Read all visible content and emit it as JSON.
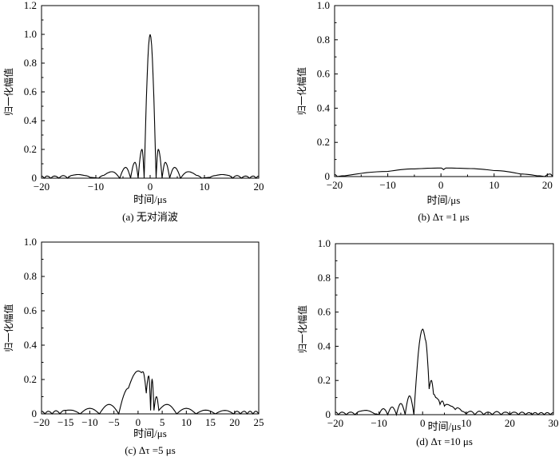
{
  "chart_data": [
    {
      "type": "line",
      "caption": "(a) 无对消波",
      "xlabel": "时间/μs",
      "ylabel": "归一化幅值",
      "xlim": [
        -20,
        20
      ],
      "ylim": [
        0,
        1.2
      ],
      "xticks": [
        -20,
        -10,
        0,
        10,
        20
      ],
      "xtick_labels": [
        "−20",
        "−10",
        "0",
        "10",
        "20"
      ],
      "yticks": [
        0,
        0.2,
        0.4,
        0.6,
        0.8,
        1.0,
        1.2
      ],
      "ytick_labels": [
        "0",
        "0.2",
        "0.4",
        "0.6",
        "0.8",
        "1.0",
        "1.2"
      ],
      "grid": false,
      "points": [
        [
          -20,
          0.015
        ],
        [
          -19.5,
          0
        ],
        [
          -19,
          0.015
        ],
        [
          -18.3,
          0
        ],
        [
          -17.6,
          0.015
        ],
        [
          -16.8,
          0
        ],
        [
          -16,
          0.018
        ],
        [
          -15.2,
          0
        ],
        [
          -14.3,
          0.02
        ],
        [
          -13.3,
          0.025
        ],
        [
          -12,
          0.018
        ],
        [
          -11,
          0.005
        ],
        [
          -9.5,
          0
        ],
        [
          -8.5,
          0.02
        ],
        [
          -7,
          0.045
        ],
        [
          -5.6,
          0
        ],
        [
          -4.5,
          0.075
        ],
        [
          -3.6,
          0
        ],
        [
          -2.8,
          0.11
        ],
        [
          -2.2,
          0
        ],
        [
          -1.5,
          0.2
        ],
        [
          -1.1,
          0
        ],
        [
          0,
          1.0
        ],
        [
          1.1,
          0
        ],
        [
          1.5,
          0.2
        ],
        [
          2.2,
          0
        ],
        [
          2.8,
          0.11
        ],
        [
          3.6,
          0
        ],
        [
          4.5,
          0.075
        ],
        [
          5.6,
          0
        ],
        [
          7,
          0.045
        ],
        [
          8.5,
          0.02
        ],
        [
          9.5,
          0
        ],
        [
          11,
          0.005
        ],
        [
          12,
          0.018
        ],
        [
          13.3,
          0.025
        ],
        [
          14.3,
          0.02
        ],
        [
          15.2,
          0
        ],
        [
          16,
          0.018
        ],
        [
          16.8,
          0
        ],
        [
          17.6,
          0.015
        ],
        [
          18.3,
          0
        ],
        [
          19,
          0.015
        ],
        [
          19.5,
          0
        ],
        [
          20,
          0.015
        ]
      ]
    },
    {
      "type": "line",
      "caption": "(b)  Δτ =1 μs",
      "xlabel": "时间/μs",
      "ylabel": "归一化幅值",
      "xlim": [
        -20,
        21
      ],
      "ylim": [
        0,
        1.0
      ],
      "xticks": [
        -20,
        -10,
        0,
        10,
        20
      ],
      "xtick_labels": [
        "−20",
        "−10",
        "0",
        "10",
        "20"
      ],
      "yticks": [
        0,
        0.2,
        0.4,
        0.6,
        0.8,
        1.0
      ],
      "ytick_labels": [
        "0",
        "0.2",
        "0.4",
        "0.6",
        "0.8",
        "1.0"
      ],
      "grid": false,
      "points": [
        [
          -20,
          0.012
        ],
        [
          -19.5,
          0
        ],
        [
          -18,
          0.005
        ],
        [
          -10,
          0.03
        ],
        [
          -5,
          0.045
        ],
        [
          0,
          0.05
        ],
        [
          0.5,
          0.04
        ],
        [
          1,
          0.05
        ],
        [
          5,
          0.047
        ],
        [
          10,
          0.035
        ],
        [
          15,
          0.015
        ],
        [
          18,
          0.005
        ],
        [
          19.5,
          0
        ],
        [
          20.5,
          0.015
        ],
        [
          21,
          0
        ]
      ]
    },
    {
      "type": "line",
      "caption": "(c) Δτ =5 μs",
      "xlabel": "时间/μs",
      "ylabel": "归一化幅值",
      "xlim": [
        -20,
        25
      ],
      "ylim": [
        0,
        1.0
      ],
      "xticks": [
        -20,
        -15,
        -10,
        -5,
        0,
        5,
        10,
        15,
        20,
        25
      ],
      "xtick_labels": [
        "−20",
        "−15",
        "−10",
        "−5",
        "0",
        "5",
        "10",
        "15",
        "20",
        "25"
      ],
      "yticks": [
        0,
        0.2,
        0.4,
        0.6,
        0.8,
        1.0
      ],
      "ytick_labels": [
        "0",
        "0.2",
        "0.4",
        "0.6",
        "0.8",
        "1.0"
      ],
      "grid": false,
      "points": [
        [
          -20,
          0.015
        ],
        [
          -19.3,
          0
        ],
        [
          -18.6,
          0.015
        ],
        [
          -17.8,
          0
        ],
        [
          -17,
          0.018
        ],
        [
          -16.2,
          0
        ],
        [
          -15.3,
          0.02
        ],
        [
          -14,
          0.022
        ],
        [
          -12,
          0
        ],
        [
          -10,
          0.032
        ],
        [
          -8,
          0
        ],
        [
          -6,
          0.055
        ],
        [
          -4,
          0
        ],
        [
          -2,
          0.15
        ],
        [
          0,
          0.25
        ],
        [
          0.7,
          0.24
        ],
        [
          1,
          0.245
        ],
        [
          1.7,
          0.12
        ],
        [
          2.2,
          0.22
        ],
        [
          2.6,
          0.02
        ],
        [
          2.9,
          0.2
        ],
        [
          3.3,
          0.02
        ],
        [
          3.8,
          0.1
        ],
        [
          4.3,
          0.02
        ],
        [
          6,
          0.055
        ],
        [
          8,
          0
        ],
        [
          10,
          0.032
        ],
        [
          12,
          0
        ],
        [
          14,
          0.022
        ],
        [
          16,
          0
        ],
        [
          18,
          0.02
        ],
        [
          19.8,
          0
        ],
        [
          20.5,
          0.015
        ],
        [
          21.2,
          0
        ],
        [
          22,
          0.015
        ],
        [
          22.6,
          0
        ],
        [
          23.2,
          0.015
        ],
        [
          23.8,
          0
        ],
        [
          24.4,
          0.015
        ],
        [
          25,
          0
        ]
      ]
    },
    {
      "type": "line",
      "caption": "(d) Δτ =10 μs",
      "xlabel": "时间/μs",
      "ylabel": "归一化幅值",
      "xlim": [
        -20,
        30
      ],
      "ylim": [
        0,
        1.0
      ],
      "xticks": [
        -20,
        -10,
        0,
        10,
        20,
        30
      ],
      "xtick_labels": [
        "−20",
        "−10",
        "0",
        "10",
        "20",
        "30"
      ],
      "yticks": [
        0,
        0.2,
        0.4,
        0.6,
        0.8,
        1.0
      ],
      "ytick_labels": [
        "0",
        "0.2",
        "0.4",
        "0.6",
        "0.8",
        "1.0"
      ],
      "grid": false,
      "points": [
        [
          -20,
          0.015
        ],
        [
          -19.3,
          0
        ],
        [
          -18.5,
          0.015
        ],
        [
          -17.5,
          0
        ],
        [
          -16.5,
          0.015
        ],
        [
          -15.5,
          0
        ],
        [
          -14.3,
          0.02
        ],
        [
          -13,
          0.025
        ],
        [
          -11,
          0.005
        ],
        [
          -10,
          0
        ],
        [
          -9,
          0.035
        ],
        [
          -8,
          0
        ],
        [
          -7,
          0.045
        ],
        [
          -6,
          0
        ],
        [
          -5,
          0.065
        ],
        [
          -4,
          0
        ],
        [
          -3,
          0.11
        ],
        [
          -2,
          0
        ],
        [
          0,
          0.5
        ],
        [
          0.6,
          0.44
        ],
        [
          1.5,
          0.15
        ],
        [
          2,
          0.2
        ],
        [
          2.5,
          0.12
        ],
        [
          3,
          0.1
        ],
        [
          3.5,
          0.09
        ],
        [
          4,
          0.06
        ],
        [
          4.5,
          0.08
        ],
        [
          5,
          0.05
        ],
        [
          5.5,
          0.06
        ],
        [
          6.5,
          0.05
        ],
        [
          7.5,
          0.03
        ],
        [
          8,
          0.04
        ],
        [
          9,
          0.02
        ],
        [
          10,
          0.005
        ],
        [
          11,
          0.02
        ],
        [
          12,
          0
        ],
        [
          13,
          0.02
        ],
        [
          14,
          0
        ],
        [
          15,
          0.015
        ],
        [
          16,
          0
        ],
        [
          17,
          0.018
        ],
        [
          18,
          0
        ],
        [
          19,
          0.015
        ],
        [
          20,
          0
        ],
        [
          21,
          0.015
        ],
        [
          22,
          0
        ],
        [
          22.8,
          0.015
        ],
        [
          23.6,
          0
        ],
        [
          24.4,
          0.012
        ],
        [
          25.1,
          0
        ],
        [
          25.8,
          0.012
        ],
        [
          26.5,
          0
        ],
        [
          27.2,
          0.012
        ],
        [
          27.9,
          0
        ],
        [
          28.6,
          0.012
        ],
        [
          29.3,
          0
        ],
        [
          30,
          0.012
        ]
      ]
    }
  ]
}
